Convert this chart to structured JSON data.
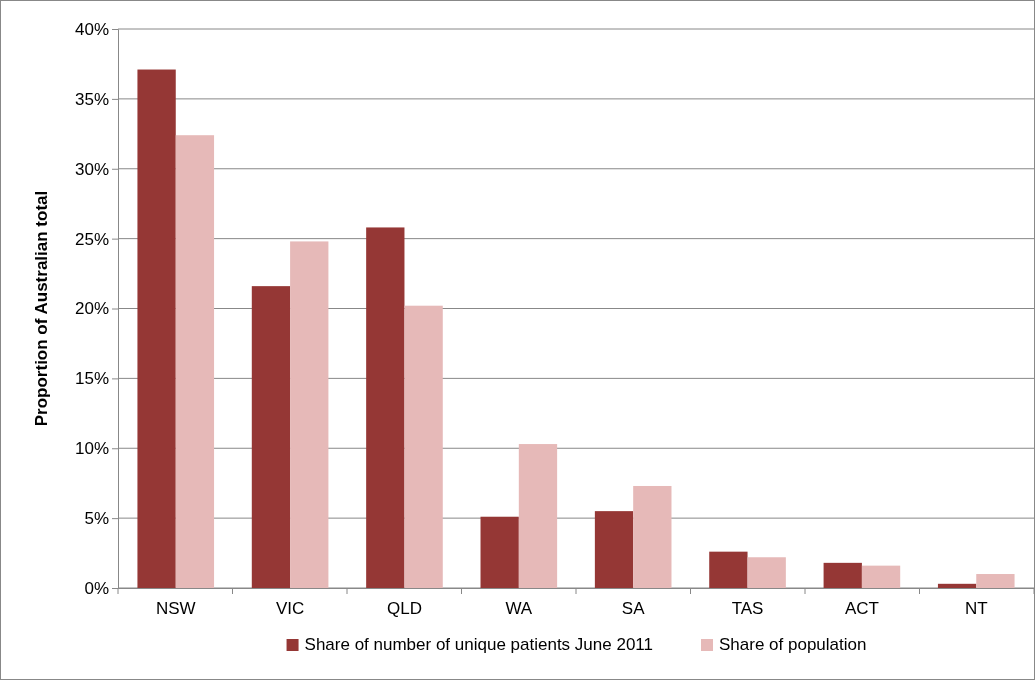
{
  "chart_data": {
    "type": "bar",
    "ylabel": "Proportion of Australian total",
    "categories": [
      "NSW",
      "VIC",
      "QLD",
      "WA",
      "SA",
      "TAS",
      "ACT",
      "NT"
    ],
    "series": [
      {
        "name": "Share of number of unique patients June 2011",
        "color": "#953735",
        "values": [
          37.1,
          21.6,
          25.8,
          5.1,
          5.5,
          2.6,
          1.8,
          0.3
        ]
      },
      {
        "name": "Share of population",
        "color": "#e6b9b8",
        "values": [
          32.4,
          24.8,
          20.2,
          10.3,
          7.3,
          2.2,
          1.6,
          1.0
        ]
      }
    ],
    "ylim": [
      0,
      40
    ],
    "yticks": [
      {
        "value": 0,
        "label": "0%"
      },
      {
        "value": 5,
        "label": "5%"
      },
      {
        "value": 10,
        "label": "10%"
      },
      {
        "value": 15,
        "label": "15%"
      },
      {
        "value": 20,
        "label": "20%"
      },
      {
        "value": 25,
        "label": "25%"
      },
      {
        "value": 30,
        "label": "30%"
      },
      {
        "value": 35,
        "label": "35%"
      },
      {
        "value": 40,
        "label": "40%"
      }
    ],
    "grid": "y",
    "legend": "bottom"
  }
}
